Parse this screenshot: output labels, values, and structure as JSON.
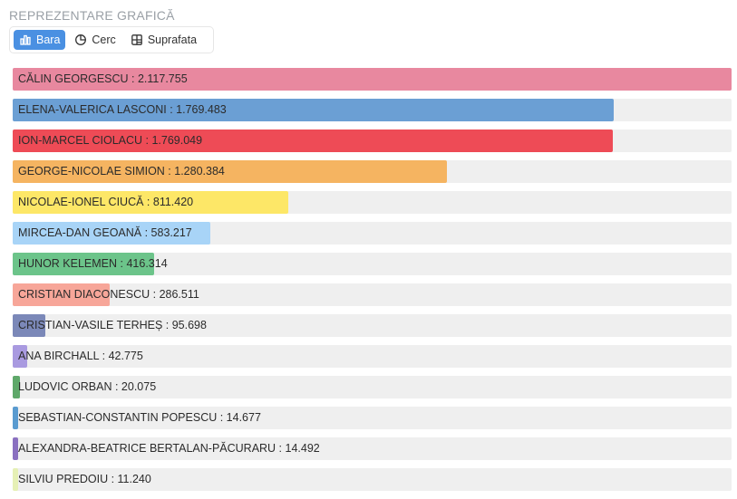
{
  "section": {
    "title": "REPREZENTARE GRAFICĂ"
  },
  "tabs": [
    {
      "label": "Bara",
      "icon": "bar-chart-icon",
      "active": true
    },
    {
      "label": "Cerc",
      "icon": "pie-chart-icon",
      "active": false
    },
    {
      "label": "Suprafata",
      "icon": "area-layout-icon",
      "active": false
    }
  ],
  "chart_data": {
    "type": "bar",
    "orientation": "horizontal",
    "xlim": [
      0,
      2117755
    ],
    "categories": [
      "CĂLIN GEORGESCU",
      "ELENA-VALERICA LASCONI",
      "ION-MARCEL CIOLACU",
      "GEORGE-NICOLAE SIMION",
      "NICOLAE-IONEL CIUCĂ",
      "MIRCEA-DAN GEOANĂ",
      "HUNOR KELEMEN",
      "CRISTIAN DIACONESCU",
      "CRISTIAN-VASILE TERHEȘ",
      "ANA BIRCHALL",
      "LUDOVIC ORBAN",
      "SEBASTIAN-CONSTANTIN POPESCU",
      "ALEXANDRA-BEATRICE BERTALAN-PĂCURARU",
      "SILVIU PREDOIU"
    ],
    "values": [
      2117755,
      1769483,
      1769049,
      1280384,
      811420,
      583217,
      416314,
      286511,
      95698,
      42775,
      20075,
      14677,
      14492,
      11240
    ],
    "value_labels": [
      "2.117.755",
      "1.769.483",
      "1.769.049",
      "1.280.384",
      "811.420",
      "583.217",
      "416.314",
      "286.511",
      "95.698",
      "42.775",
      "20.075",
      "14.677",
      "14.492",
      "11.240"
    ],
    "colors": [
      "#e8889f",
      "#6b9fd4",
      "#ee4b56",
      "#f5b461",
      "#fde767",
      "#a8d4f7",
      "#6cc48a",
      "#f7a699",
      "#7b88b8",
      "#a99ae0",
      "#5fa86a",
      "#5a9bd0",
      "#8a70c0",
      "#e6f0b5"
    ],
    "track_color": "#efefef"
  }
}
